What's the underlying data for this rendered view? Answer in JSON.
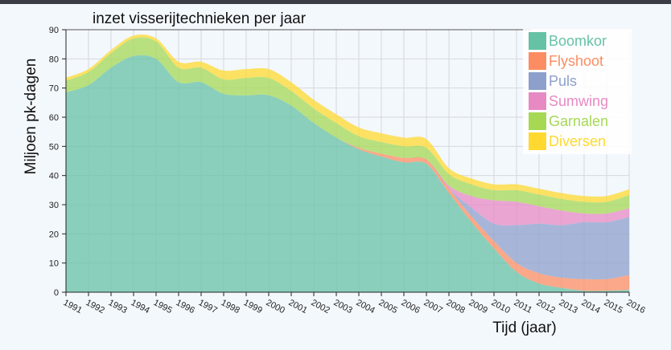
{
  "chart_data": {
    "type": "area",
    "stacked": true,
    "title": "inzet visserijtechnieken per jaar",
    "xlabel": "Tijd (jaar)",
    "ylabel": "Miljoen pk-dagen",
    "ylim": [
      0,
      90
    ],
    "yticks": [
      0,
      10,
      20,
      30,
      40,
      50,
      60,
      70,
      80,
      90
    ],
    "x": [
      1991,
      1992,
      1993,
      1994,
      1995,
      1996,
      1997,
      1998,
      1999,
      2000,
      2001,
      2002,
      2003,
      2004,
      2005,
      2006,
      2007,
      2008,
      2009,
      2010,
      2011,
      2012,
      2013,
      2014,
      2015,
      2016
    ],
    "grid": true,
    "legend_position": "top-right",
    "series": [
      {
        "name": "Boomkor",
        "color": "#66c2a5",
        "values": [
          68.5,
          71,
          77,
          81,
          80,
          72,
          72,
          68,
          67.5,
          67.5,
          64,
          58,
          53,
          49,
          46.5,
          44.5,
          44,
          34,
          24,
          15,
          7,
          3,
          1.5,
          0.5,
          0.5,
          0.8
        ]
      },
      {
        "name": "Flyshoot",
        "color": "#fc8d62",
        "values": [
          0,
          0,
          0,
          0,
          0,
          0,
          0,
          0,
          0,
          0,
          0,
          0,
          0,
          0.5,
          1,
          1.5,
          1.5,
          1.5,
          2,
          2.5,
          3,
          3.5,
          3.5,
          4,
          4,
          5
        ]
      },
      {
        "name": "Puls",
        "color": "#8da0cb",
        "values": [
          0,
          0,
          0,
          0,
          0,
          0,
          0,
          0,
          0,
          0,
          0,
          0,
          0,
          0,
          0,
          0,
          0,
          0,
          3,
          6,
          13,
          17,
          18,
          19.5,
          19.5,
          20
        ]
      },
      {
        "name": "Sumwing",
        "color": "#e78ac3",
        "values": [
          0,
          0,
          0,
          0,
          0,
          0,
          0,
          0,
          0,
          0,
          0,
          0,
          0,
          0,
          0,
          0,
          0,
          1,
          4,
          8,
          8,
          6,
          5,
          3,
          3,
          3
        ]
      },
      {
        "name": "Garnalen",
        "color": "#a6d854",
        "values": [
          4,
          4.5,
          5,
          6,
          6,
          5,
          5,
          5,
          6,
          6,
          5,
          5,
          5,
          4,
          4,
          4,
          4,
          4,
          4,
          3.5,
          4,
          4,
          4,
          4,
          4,
          4.5
        ]
      },
      {
        "name": "Diversen",
        "color": "#ffd92f",
        "values": [
          1,
          1,
          1,
          1,
          1,
          2,
          2,
          3,
          3,
          3,
          3,
          3,
          3,
          3,
          3,
          3,
          3,
          2,
          2,
          2,
          2,
          2,
          2,
          2,
          2,
          2
        ]
      }
    ]
  }
}
